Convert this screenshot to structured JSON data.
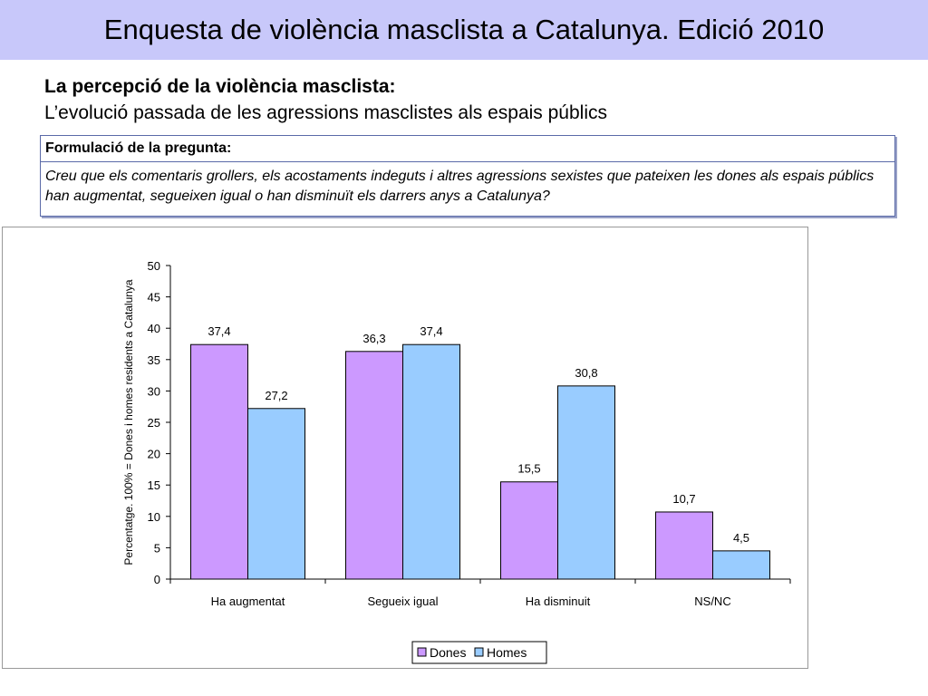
{
  "header": {
    "title": "Enquesta de violència masclista a Catalunya. Edició 2010"
  },
  "subheader": {
    "line1": "La percepció de la violència masclista:",
    "line2": "L’evolució passada de les agressions masclistes als espais públics"
  },
  "question": {
    "heading": "Formulació de la pregunta:",
    "text": "Creu que els comentaris grollers, els acostaments indeguts i altres agressions sexistes que pateixen les dones als espais públics han augmentat, segueixen igual o han disminuït els darrers anys a Catalunya?"
  },
  "colors": {
    "banner": "#c8c8fa",
    "dones": "#cc99ff",
    "homes": "#99ccff"
  },
  "chart_data": {
    "type": "bar",
    "categories": [
      "Ha augmentat",
      "Segueix igual",
      "Ha disminuit",
      "NS/NC"
    ],
    "series": [
      {
        "name": "Dones",
        "values": [
          37.4,
          36.3,
          15.5,
          10.7
        ],
        "labels": [
          "37,4",
          "36,3",
          "15,5",
          "10,7"
        ],
        "color": "#cc99ff"
      },
      {
        "name": "Homes",
        "values": [
          27.2,
          37.4,
          30.8,
          4.5
        ],
        "labels": [
          "27,2",
          "37,4",
          "30,8",
          "4,5"
        ],
        "color": "#99ccff"
      }
    ],
    "ylabel": "Percentatge. 100% = Dones i homes residents a Catalunya",
    "ylim": [
      0,
      50
    ],
    "yticks": [
      0,
      5,
      10,
      15,
      20,
      25,
      30,
      35,
      40,
      45,
      50
    ],
    "grid": false,
    "legend": "bottom-center"
  }
}
